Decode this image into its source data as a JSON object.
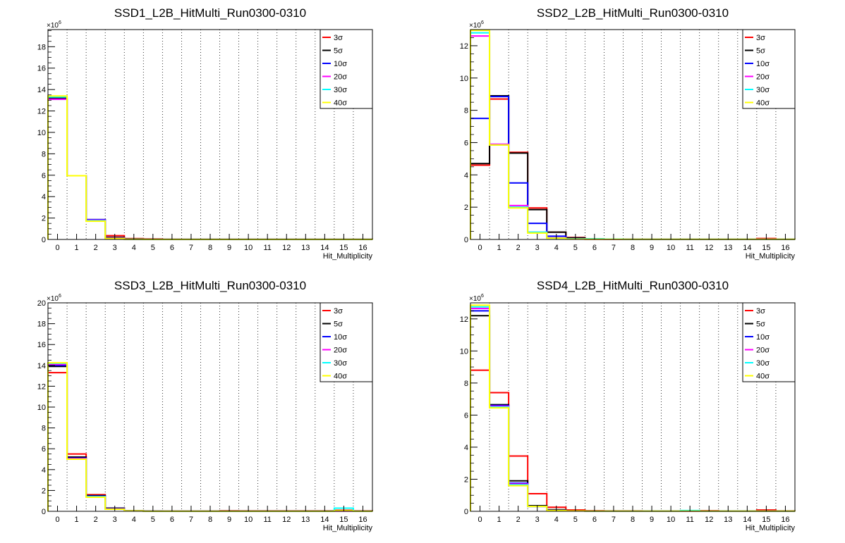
{
  "chart_data": [
    {
      "type": "step",
      "title": "SSD1_L2B_HitMulti_Run0300-0310",
      "xlabel": "Hit_Multiplicity",
      "ylabel": "",
      "y_multiplier_label": "×10",
      "y_multiplier_exp": "6",
      "y_unit": 1000000,
      "x_tick_labels": [
        "0",
        "1",
        "2",
        "3",
        "4",
        "5",
        "6",
        "7",
        "8",
        "9",
        "10",
        "11",
        "12",
        "13",
        "14",
        "15",
        "16"
      ],
      "y_ticks": [
        0,
        2,
        4,
        6,
        8,
        10,
        12,
        14,
        16,
        18
      ],
      "ylim": [
        0,
        19.6
      ],
      "grid": "vertical-dotted",
      "legend": "top-right",
      "series": [
        {
          "name": "3σ",
          "color": "#ff0000",
          "values": [
            13.1,
            5.95,
            1.8,
            0.35,
            0.08,
            0.05,
            0.02,
            0.01,
            0.01,
            0.005,
            0.005,
            0.005,
            0.005,
            0.005,
            0.005,
            0.005,
            0.01
          ]
        },
        {
          "name": "5σ",
          "color": "#000000",
          "values": [
            13.2,
            5.95,
            1.85,
            0.2,
            0.05,
            0.02,
            0.01,
            0.01,
            0.005,
            0.005,
            0.005,
            0.005,
            0.005,
            0.005,
            0.005,
            0.005,
            0.005
          ]
        },
        {
          "name": "10σ",
          "color": "#0000ff",
          "values": [
            13.1,
            5.95,
            1.85,
            0.15,
            0.03,
            0.01,
            0.01,
            0.005,
            0.005,
            0.005,
            0.005,
            0.005,
            0.005,
            0.005,
            0.005,
            0.005,
            0.005
          ]
        },
        {
          "name": "20σ",
          "color": "#ff00ff",
          "values": [
            13.1,
            5.95,
            1.8,
            0.12,
            0.02,
            0.01,
            0.005,
            0.005,
            0.005,
            0.005,
            0.005,
            0.005,
            0.005,
            0.005,
            0.005,
            0.005,
            0.005
          ]
        },
        {
          "name": "30σ",
          "color": "#00ffff",
          "values": [
            13.3,
            5.95,
            1.75,
            0.1,
            0.02,
            0.01,
            0.005,
            0.005,
            0.005,
            0.005,
            0.005,
            0.005,
            0.005,
            0.005,
            0.005,
            0.005,
            0.005
          ]
        },
        {
          "name": "40σ",
          "color": "#ffff00",
          "values": [
            13.4,
            5.95,
            1.7,
            0.1,
            0.02,
            0.01,
            0.005,
            0.005,
            0.005,
            0.005,
            0.005,
            0.005,
            0.005,
            0.005,
            0.005,
            0.005,
            0.005
          ]
        }
      ]
    },
    {
      "type": "step",
      "title": "SSD2_L2B_HitMulti_Run0300-0310",
      "xlabel": "Hit_Multiplicity",
      "ylabel": "",
      "y_multiplier_label": "×10",
      "y_multiplier_exp": "6",
      "y_unit": 1000000,
      "x_tick_labels": [
        "0",
        "1",
        "2",
        "3",
        "4",
        "5",
        "6",
        "7",
        "8",
        "9",
        "10",
        "11",
        "12",
        "13",
        "14",
        "15",
        "16"
      ],
      "y_ticks": [
        0,
        2,
        4,
        6,
        8,
        10,
        12
      ],
      "ylim": [
        0,
        13.0
      ],
      "grid": "vertical-dotted",
      "legend": "top-right",
      "series": [
        {
          "name": "3σ",
          "color": "#ff0000",
          "values": [
            4.6,
            8.7,
            5.4,
            1.95,
            0.45,
            0.12,
            0.04,
            0.02,
            0.02,
            0.01,
            0.01,
            0.01,
            0.01,
            0.01,
            0.01,
            0.06,
            0.02
          ]
        },
        {
          "name": "5σ",
          "color": "#000000",
          "values": [
            4.7,
            8.9,
            5.35,
            1.85,
            0.45,
            0.1,
            0.03,
            0.02,
            0.01,
            0.01,
            0.01,
            0.01,
            0.01,
            0.01,
            0.01,
            0.02,
            0.01
          ]
        },
        {
          "name": "10σ",
          "color": "#0000ff",
          "values": [
            7.5,
            8.85,
            3.5,
            1.0,
            0.2,
            0.05,
            0.02,
            0.01,
            0.01,
            0.01,
            0.01,
            0.01,
            0.01,
            0.01,
            0.01,
            0.01,
            0.01
          ]
        },
        {
          "name": "20σ",
          "color": "#ff00ff",
          "values": [
            12.6,
            5.9,
            2.1,
            0.45,
            0.1,
            0.02,
            0.01,
            0.01,
            0.01,
            0.01,
            0.01,
            0.01,
            0.01,
            0.01,
            0.01,
            0.01,
            0.01
          ]
        },
        {
          "name": "30σ",
          "color": "#00ffff",
          "values": [
            12.8,
            5.85,
            2.0,
            0.45,
            0.08,
            0.04,
            0.04,
            0.02,
            0.01,
            0.01,
            0.01,
            0.01,
            0.01,
            0.01,
            0.01,
            0.01,
            0.01
          ]
        },
        {
          "name": "40σ",
          "color": "#ffff00",
          "values": [
            12.95,
            5.85,
            1.95,
            0.4,
            0.08,
            0.02,
            0.01,
            0.01,
            0.01,
            0.01,
            0.01,
            0.01,
            0.01,
            0.01,
            0.01,
            0.01,
            0.01
          ]
        }
      ]
    },
    {
      "type": "step",
      "title": "SSD3_L2B_HitMulti_Run0300-0310",
      "xlabel": "Hit_Multiplicity",
      "ylabel": "",
      "y_multiplier_label": "×10",
      "y_multiplier_exp": "6",
      "y_unit": 1000000,
      "x_tick_labels": [
        "0",
        "1",
        "2",
        "3",
        "4",
        "5",
        "6",
        "7",
        "8",
        "9",
        "10",
        "11",
        "12",
        "13",
        "14",
        "15",
        "16"
      ],
      "y_ticks": [
        0,
        2,
        4,
        6,
        8,
        10,
        12,
        14,
        16,
        18,
        20
      ],
      "ylim": [
        0,
        20.0
      ],
      "grid": "vertical-dotted",
      "legend": "top-right",
      "series": [
        {
          "name": "3σ",
          "color": "#ff0000",
          "values": [
            13.3,
            5.5,
            1.6,
            0.3,
            0.06,
            0.03,
            0.02,
            0.02,
            0.02,
            0.05,
            0.04,
            0.04,
            0.04,
            0.04,
            0.04,
            0.1,
            0.04
          ]
        },
        {
          "name": "5σ",
          "color": "#000000",
          "values": [
            13.9,
            5.2,
            1.5,
            0.3,
            0.06,
            0.02,
            0.01,
            0.01,
            0.01,
            0.02,
            0.02,
            0.02,
            0.02,
            0.02,
            0.02,
            0.05,
            0.02
          ]
        },
        {
          "name": "10σ",
          "color": "#0000ff",
          "values": [
            14.0,
            5.1,
            1.45,
            0.25,
            0.05,
            0.02,
            0.01,
            0.01,
            0.01,
            0.01,
            0.01,
            0.01,
            0.01,
            0.01,
            0.01,
            0.03,
            0.01
          ]
        },
        {
          "name": "20σ",
          "color": "#ff00ff",
          "values": [
            14.1,
            5.05,
            1.4,
            0.22,
            0.04,
            0.01,
            0.01,
            0.01,
            0.01,
            0.01,
            0.01,
            0.01,
            0.01,
            0.01,
            0.01,
            0.02,
            0.01
          ]
        },
        {
          "name": "30σ",
          "color": "#00ffff",
          "values": [
            14.2,
            5.0,
            1.4,
            0.2,
            0.04,
            0.01,
            0.01,
            0.01,
            0.01,
            0.01,
            0.01,
            0.01,
            0.01,
            0.01,
            0.01,
            0.3,
            0.01
          ]
        },
        {
          "name": "40σ",
          "color": "#ffff00",
          "values": [
            14.25,
            5.0,
            1.35,
            0.2,
            0.04,
            0.01,
            0.01,
            0.01,
            0.01,
            0.01,
            0.01,
            0.01,
            0.01,
            0.01,
            0.01,
            0.05,
            0.01
          ]
        }
      ]
    },
    {
      "type": "step",
      "title": "SSD4_L2B_HitMulti_Run0300-0310",
      "xlabel": "Hit_Multiplicity",
      "ylabel": "",
      "y_multiplier_label": "×10",
      "y_multiplier_exp": "6",
      "y_unit": 1000000,
      "x_tick_labels": [
        "0",
        "1",
        "2",
        "3",
        "4",
        "5",
        "6",
        "7",
        "8",
        "9",
        "10",
        "11",
        "12",
        "13",
        "14",
        "15",
        "16"
      ],
      "y_ticks": [
        0,
        2,
        4,
        6,
        8,
        10,
        12
      ],
      "ylim": [
        0,
        13.0
      ],
      "grid": "vertical-dotted",
      "legend": "top-right",
      "series": [
        {
          "name": "3σ",
          "color": "#ff0000",
          "values": [
            8.8,
            7.4,
            3.45,
            1.1,
            0.25,
            0.08,
            0.04,
            0.03,
            0.03,
            0.02,
            0.02,
            0.02,
            0.04,
            0.02,
            0.02,
            0.08,
            0.03
          ]
        },
        {
          "name": "5σ",
          "color": "#000000",
          "values": [
            12.2,
            6.65,
            1.9,
            0.35,
            0.1,
            0.03,
            0.02,
            0.02,
            0.02,
            0.02,
            0.02,
            0.02,
            0.02,
            0.02,
            0.02,
            0.02,
            0.02
          ]
        },
        {
          "name": "10σ",
          "color": "#0000ff",
          "values": [
            12.5,
            6.6,
            1.75,
            0.3,
            0.06,
            0.02,
            0.01,
            0.01,
            0.01,
            0.01,
            0.01,
            0.01,
            0.01,
            0.01,
            0.01,
            0.01,
            0.01
          ]
        },
        {
          "name": "20σ",
          "color": "#ff00ff",
          "values": [
            12.65,
            6.55,
            1.7,
            0.3,
            0.05,
            0.02,
            0.01,
            0.01,
            0.01,
            0.01,
            0.01,
            0.01,
            0.01,
            0.01,
            0.01,
            0.01,
            0.01
          ]
        },
        {
          "name": "30σ",
          "color": "#00ffff",
          "values": [
            12.75,
            6.5,
            1.65,
            0.3,
            0.05,
            0.02,
            0.01,
            0.01,
            0.01,
            0.01,
            0.01,
            0.05,
            0.01,
            0.01,
            0.01,
            0.01,
            0.01
          ]
        },
        {
          "name": "40σ",
          "color": "#ffff00",
          "values": [
            12.85,
            6.45,
            1.6,
            0.3,
            0.05,
            0.02,
            0.01,
            0.01,
            0.01,
            0.01,
            0.01,
            0.01,
            0.01,
            0.01,
            0.01,
            0.01,
            0.01
          ]
        }
      ]
    }
  ]
}
